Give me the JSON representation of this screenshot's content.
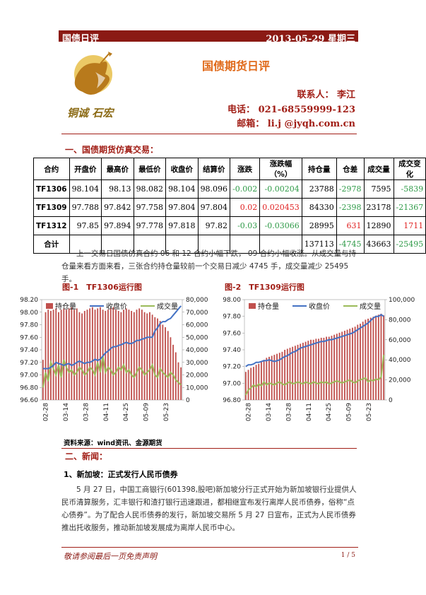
{
  "header": {
    "left": "国债日评",
    "right": "2013-05-29 星期三"
  },
  "logo": {
    "text": "铜诚 石宏"
  },
  "title": "国债期货日评",
  "contact": {
    "person": "联系人： 李江",
    "phone": "电话： 021-68559999-123",
    "email": "邮箱： li.j @jyqh.com.cn"
  },
  "section1": "一、国债期货仿真交易：",
  "table": {
    "headers": [
      "合约",
      "开盘价",
      "最高价",
      "最低价",
      "收盘价",
      "结算价",
      "涨跌",
      "涨跌幅（%）",
      "持仓量",
      "仓差",
      "成交量",
      "成交变化"
    ],
    "rows": [
      [
        "TF1306",
        "98.104",
        "98.13",
        "98.082",
        "98.104",
        "98.096",
        "-0.002",
        "-0.00204",
        "23788",
        "-2978",
        "7595",
        "-5839"
      ],
      [
        "TF1309",
        "97.788",
        "97.842",
        "97.758",
        "97.804",
        "97.804",
        "0.02",
        "0.020453",
        "84330",
        "-2398",
        "23178",
        "-21367"
      ],
      [
        "TF1312",
        "97.85",
        "97.894",
        "97.778",
        "97.818",
        "97.82",
        "-0.03",
        "-0.03066",
        "28995",
        "631",
        "12890",
        "1711"
      ],
      [
        "合计",
        "",
        "",
        "",
        "",
        "",
        "",
        "",
        "137113",
        "-4745",
        "43663",
        "-25495"
      ]
    ],
    "colors": [
      [
        "",
        "",
        "",
        "",
        "",
        "",
        "green",
        "green",
        "",
        "green",
        "",
        "green"
      ],
      [
        "",
        "",
        "",
        "",
        "",
        "",
        "red",
        "red",
        "",
        "green",
        "",
        "green"
      ],
      [
        "",
        "",
        "",
        "",
        "",
        "",
        "green",
        "green",
        "",
        "red",
        "",
        "red"
      ],
      [
        "",
        "",
        "",
        "",
        "",
        "",
        "",
        "",
        "",
        "green",
        "",
        "green"
      ]
    ]
  },
  "paragraph1": "上一交易日国债仿真合约 06 和 12 合约小幅下跌， 09 合约小幅收涨。从成交量与持仓量来看方面来看，三张合约持仓量较前一个交易日减少 4745 手，成交量减少 25495 手。",
  "fig1_caption": "图-1　TF1306运行图",
  "fig2_caption": "图-2　TF1309运行图",
  "source": "资料来源：wind资讯、金源期货",
  "section2": "二、新闻：",
  "news1_title": "1、新加坡：正式发行人民币债券",
  "news1_body": "5 月 27 日，中国工商银行(601398,股吧)新加坡分行正式开始为新加坡银行业提供人民币清算服务，汇丰银行和渣打银行迅速跟进，都相继宣布发行离岸人民币债券，俗称“点心债券”。为了配合人民币债券的发行，新加坡交易所 5 月 27 日宣布，正式为人民币债券推出托收服务，推动新加坡发展成为离岸人民币中心。",
  "footer": {
    "left": "敬请参阅最后一页免责声明",
    "page": "1 / 5"
  },
  "colors": {
    "brand": "#8b1a14",
    "bar": "#c0504d",
    "close_line": "#4472c4",
    "volume_line": "#9bbb59"
  },
  "chart_data": [
    {
      "type": "bar",
      "title": "图-1　TF1306运行图",
      "legend": [
        "持仓量",
        "收盘价",
        "成交量"
      ],
      "x_ticks": [
        "02-28",
        "03-14",
        "03-28",
        "04-11",
        "04-25",
        "05-09",
        "05-23"
      ],
      "y_left_ticks": [
        "96.60",
        "96.80",
        "97.00",
        "97.20",
        "97.40",
        "97.60",
        "97.80",
        "98.00",
        "98.20"
      ],
      "y_right_ticks": [
        "0",
        "10,000",
        "20,000",
        "30,000",
        "40,000",
        "50,000",
        "60,000",
        "70,000",
        "80,000"
      ],
      "y_left_range": [
        96.6,
        98.2
      ],
      "y_right_range": [
        0,
        80000
      ],
      "series": [
        {
          "name": "持仓量",
          "axis": "right",
          "values": [
            32000,
            70000,
            72000,
            71000,
            72000,
            73000,
            70000,
            72000,
            73000,
            72000,
            73000,
            74000,
            72000,
            73000,
            70000,
            69000,
            71000,
            72000,
            73000,
            74000,
            72000,
            73000,
            74000,
            72000,
            71000,
            72000,
            73000,
            74000,
            72000,
            71000,
            70000,
            72000,
            73000,
            72000,
            71000,
            70000,
            72000,
            73000,
            72000,
            70000,
            69000,
            70000,
            68000,
            66000,
            65000,
            63000,
            60000,
            58000,
            55000,
            50000,
            44000,
            38000,
            30000,
            26000
          ]
        },
        {
          "name": "收盘价",
          "axis": "left",
          "values": [
            97.1,
            97.1,
            97.1,
            97.12,
            97.15,
            97.2,
            97.18,
            97.17,
            97.15,
            97.17,
            97.18,
            97.15,
            97.17,
            97.2,
            97.22,
            97.2,
            97.18,
            97.2,
            97.2,
            97.22,
            97.25,
            97.23,
            97.25,
            97.3,
            97.35,
            97.38,
            97.42,
            97.45,
            97.45,
            97.47,
            97.48,
            97.5,
            97.52,
            97.5,
            97.5,
            97.52,
            97.55,
            97.55,
            97.57,
            97.58,
            97.6,
            97.6,
            97.6,
            97.7,
            97.75,
            97.82,
            97.85,
            97.85,
            97.88,
            97.9,
            97.95,
            98.0,
            98.05,
            98.1
          ]
        },
        {
          "name": "成交量",
          "axis": "right",
          "values": [
            10000,
            22000,
            15000,
            30000,
            25000,
            20000,
            28000,
            18000,
            32000,
            26000,
            22000,
            24000,
            20000,
            22000,
            26000,
            24000,
            20000,
            22000,
            26000,
            24000,
            20000,
            30000,
            22000,
            35000,
            22000,
            26000,
            24000,
            20000,
            22000,
            26000,
            24000,
            28000,
            22000,
            24000,
            20000,
            18000,
            22000,
            26000,
            24000,
            20000,
            22000,
            24000,
            28000,
            20000,
            18000,
            25000,
            22000,
            20000,
            18000,
            22000,
            20000,
            16000,
            14000,
            12000
          ]
        }
      ]
    },
    {
      "type": "bar",
      "title": "图-2　TF1309运行图",
      "legend": [
        "持仓量",
        "收盘价",
        "成交量"
      ],
      "x_ticks": [
        "02-28",
        "03-14",
        "03-28",
        "04-11",
        "04-25",
        "05-09",
        "05-23"
      ],
      "y_left_ticks": [
        "96.80",
        "97.00",
        "97.20",
        "97.40",
        "97.60",
        "97.80",
        "98.00"
      ],
      "y_right_ticks": [
        "0",
        "20,000",
        "40,000",
        "60,000",
        "80,000",
        "100,000"
      ],
      "y_left_range": [
        96.8,
        98.0
      ],
      "y_right_range": [
        0,
        100000
      ],
      "series": [
        {
          "name": "持仓量",
          "axis": "right",
          "values": [
            28000,
            30000,
            32000,
            33000,
            35000,
            36000,
            38000,
            40000,
            42000,
            43000,
            44000,
            45000,
            46000,
            47000,
            48000,
            50000,
            51000,
            52000,
            53000,
            54000,
            55000,
            56000,
            57000,
            58000,
            59000,
            60000,
            60000,
            61000,
            61000,
            62000,
            62000,
            63000,
            63000,
            64000,
            65000,
            66000,
            67000,
            68000,
            69000,
            70000,
            71000,
            72000,
            73000,
            75000,
            76000,
            78000,
            80000,
            81000,
            82000,
            83000,
            84000,
            85000,
            86000,
            84330
          ]
        },
        {
          "name": "收盘价",
          "axis": "left",
          "values": [
            97.2,
            97.22,
            97.22,
            97.23,
            97.25,
            97.25,
            97.26,
            97.27,
            97.27,
            97.28,
            97.27,
            97.26,
            97.27,
            97.28,
            97.3,
            97.32,
            97.33,
            97.35,
            97.37,
            97.38,
            97.4,
            97.42,
            97.43,
            97.44,
            97.45,
            97.46,
            97.47,
            97.48,
            97.49,
            97.5,
            97.5,
            97.51,
            97.52,
            97.52,
            97.53,
            97.54,
            97.55,
            97.56,
            97.57,
            97.58,
            97.59,
            97.6,
            97.62,
            97.64,
            97.66,
            97.68,
            97.7,
            97.72,
            97.75,
            97.78,
            97.8,
            97.8,
            97.82,
            97.8
          ]
        },
        {
          "name": "成交量",
          "axis": "right",
          "values": [
            5000,
            10000,
            12000,
            15000,
            13000,
            16000,
            14000,
            18000,
            15000,
            17000,
            16000,
            15000,
            17000,
            18000,
            16000,
            15000,
            17000,
            18000,
            16000,
            17000,
            18000,
            17000,
            16000,
            18000,
            17000,
            16000,
            18000,
            17000,
            16000,
            18000,
            17000,
            18000,
            16000,
            17000,
            18000,
            19000,
            18000,
            17000,
            18000,
            19000,
            20000,
            18000,
            17000,
            19000,
            20000,
            21000,
            22000,
            18000,
            20000,
            19000,
            21000,
            20000,
            23000,
            45000
          ]
        }
      ]
    }
  ]
}
